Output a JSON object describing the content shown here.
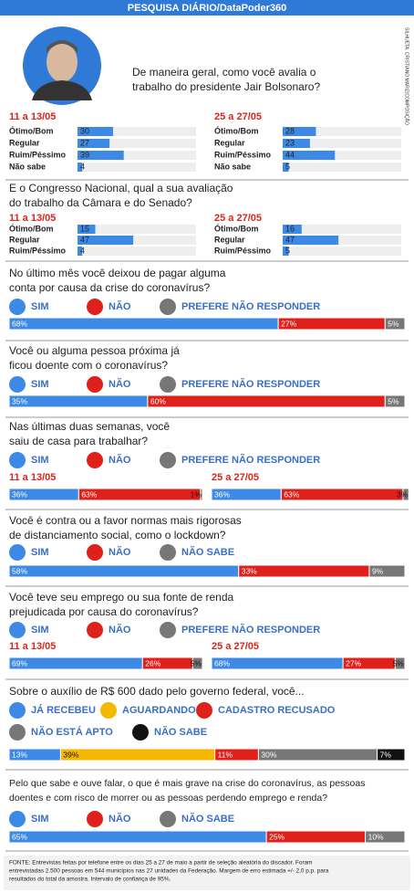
{
  "header": {
    "title": "PESQUISA DIÁRIO/DataPoder360",
    "credit": "SILHUETA: CRISTIANO MARIZ/COMPOSIÇÃO"
  },
  "sections": [
    {
      "question": [
        "De maneira geral, como você avalia o",
        "trabalho do presidente Jair Bolsonaro?"
      ],
      "color": "#3d8ae6",
      "panels": [
        {
          "period": "11 a 13/05",
          "rows": [
            {
              "label": "Ótimo/Bom",
              "value": 30
            },
            {
              "label": "Regular",
              "value": 27
            },
            {
              "label": "Ruim/Péssimo",
              "value": 39
            },
            {
              "label": "Não sabe",
              "value": 4
            }
          ]
        },
        {
          "period": "25 a 27/05",
          "rows": [
            {
              "label": "Ótimo/Bom",
              "value": 28
            },
            {
              "label": "Regular",
              "value": 23
            },
            {
              "label": "Ruim/Péssimo",
              "value": 44
            },
            {
              "label": "Não sabe",
              "value": 5
            }
          ]
        }
      ]
    },
    {
      "question": [
        "E o Congresso Nacional, qual a sua avaliação",
        "do trabalho da Câmara e do Senado?"
      ],
      "color": "#3d8ae6",
      "panels": [
        {
          "period": "11 a 13/05",
          "rows": [
            {
              "label": "Ótimo/Bom",
              "value": 15
            },
            {
              "label": "Regular",
              "value": 47
            },
            {
              "label": "Ruim/Péssimo",
              "value": 4
            }
          ]
        },
        {
          "period": "25 a 27/05",
          "rows": [
            {
              "label": "Ótimo/Bom",
              "value": 16
            },
            {
              "label": "Regular",
              "value": 47
            },
            {
              "label": "Ruim/Péssimo",
              "value": 5
            }
          ]
        }
      ]
    },
    {
      "question": [
        "No último mês você deixou de pagar alguma",
        "conta por causa da crise do coronavírus?"
      ],
      "legend": [
        {
          "label": "SIM",
          "color": "#3d8ae6"
        },
        {
          "label": "NÃO",
          "color": "#e0201b"
        },
        {
          "label": "PREFERE NÃO RESPONDER",
          "color": "#777777"
        }
      ],
      "panels": [
        {
          "values": [
            68,
            27,
            5
          ],
          "value_labels": [
            "68%",
            "27%",
            "5%"
          ]
        }
      ]
    },
    {
      "question": [
        "Você ou alguma pessoa próxima já",
        "ficou doente com o coronavírus?"
      ],
      "legend": [
        {
          "label": "SIM",
          "color": "#3d8ae6"
        },
        {
          "label": "NÃO",
          "color": "#e0201b"
        },
        {
          "label": "PREFERE NÃO RESPONDER",
          "color": "#777777"
        }
      ],
      "panels": [
        {
          "values": [
            35,
            60,
            5
          ],
          "value_labels": [
            "35%",
            "60%",
            "5%"
          ]
        }
      ]
    },
    {
      "question": [
        "Nas últimas duas semanas, você",
        "saiu de casa para trabalhar?"
      ],
      "legend": [
        {
          "label": "SIM",
          "color": "#3d8ae6"
        },
        {
          "label": "NÃO",
          "color": "#e0201b"
        },
        {
          "label": "PREFERE NÃO RESPONDER",
          "color": "#777777"
        }
      ],
      "panels": [
        {
          "period": "11 a 13/05",
          "values": [
            36,
            63,
            1
          ],
          "value_labels": [
            "36%",
            "63%",
            "1%"
          ]
        },
        {
          "period": "25 a 27/05",
          "values": [
            36,
            63,
            3
          ],
          "value_labels": [
            "36%",
            "63%",
            "3%"
          ]
        }
      ]
    },
    {
      "question": [
        "Você é contra ou a favor normas mais rigorosas",
        "de distanciamento social, como o lockdown?"
      ],
      "legend": [
        {
          "label": "SIM",
          "color": "#3d8ae6"
        },
        {
          "label": "NÃO",
          "color": "#e0201b"
        },
        {
          "label": "NÃO SABE",
          "color": "#777777"
        }
      ],
      "panels": [
        {
          "values": [
            58,
            33,
            9
          ],
          "value_labels": [
            "58%",
            "33%",
            "9%"
          ]
        }
      ]
    },
    {
      "question": [
        "Você teve seu emprego ou sua fonte de renda",
        "prejudicada por causa do coronavírus?"
      ],
      "legend": [
        {
          "label": "SIM",
          "color": "#3d8ae6"
        },
        {
          "label": "NÃO",
          "color": "#e0201b"
        },
        {
          "label": "PREFERE NÃO RESPONDER",
          "color": "#777777"
        }
      ],
      "panels": [
        {
          "period": "11 a 13/05",
          "values": [
            69,
            26,
            5
          ],
          "value_labels": [
            "69%",
            "26%",
            "5%"
          ]
        },
        {
          "period": "25 a 27/05",
          "values": [
            68,
            27,
            5
          ],
          "value_labels": [
            "68%",
            "27%",
            "5%"
          ]
        }
      ]
    },
    {
      "question": [
        "Sobre o auxílio de R$ 600 dado pelo governo federal, você..."
      ],
      "legend": [
        {
          "label": "JÁ RECEBEU",
          "color": "#3d8ae6"
        },
        {
          "label": "AGUARDANDO",
          "color": "#f5b800"
        },
        {
          "label": "CADASTRO RECUSADO",
          "color": "#e0201b"
        },
        {
          "label": "NÃO ESTÁ APTO",
          "color": "#777777"
        },
        {
          "label": "NÃO SABE",
          "color": "#111111"
        }
      ],
      "panels": [
        {
          "values": [
            13,
            39,
            11,
            30,
            7
          ],
          "value_labels": [
            "13%",
            "39%",
            "11%",
            "30%",
            "7%"
          ]
        }
      ]
    },
    {
      "question": [
        "Pelo que sabe e ouve falar, o que é mais grave na crise do coronavírus, as pessoas",
        "doentes e com risco de morrer ou as pessoas perdendo emprego e renda?"
      ],
      "legend": [
        {
          "label": "SIM",
          "color": "#3d8ae6"
        },
        {
          "label": "NÃO",
          "color": "#e0201b"
        },
        {
          "label": "NÃO SABE",
          "color": "#777777"
        }
      ],
      "panels": [
        {
          "values": [
            65,
            25,
            10
          ],
          "value_labels": [
            "65%",
            "25%",
            "10%"
          ]
        }
      ]
    }
  ],
  "footer": [
    "FONTE: Entrevistas feitas por telefone entre os dias 25 a 27 de maio a partir de seleção aleatória do discador. Foram",
    "entrevistadas 2.500 pessoas em 544 municípios nas 27 unidades da Federação. Margem de erro estimada +/- 2,0 p.p. para",
    "resultados do total da amostra. Intervalo de confiança de 95%."
  ]
}
